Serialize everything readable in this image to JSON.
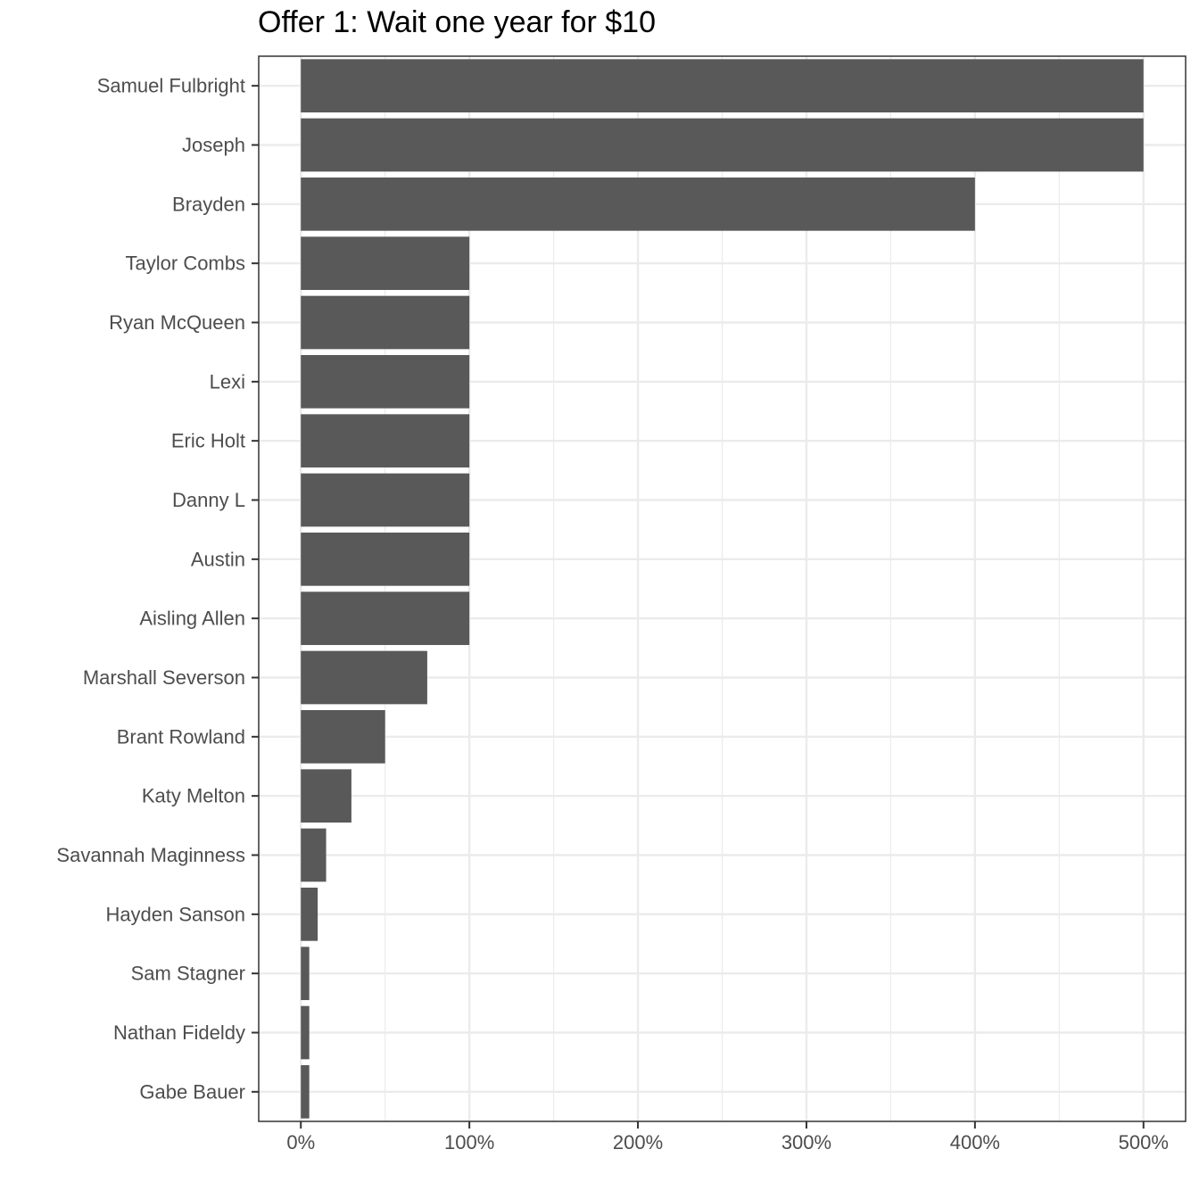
{
  "chart_data": {
    "type": "bar",
    "orientation": "horizontal",
    "title": "Offer 1: Wait one year for $10",
    "xlabel": "",
    "ylabel": "",
    "categories": [
      "Samuel Fulbright",
      "Joseph",
      "Brayden",
      "Taylor Combs",
      "Ryan McQueen",
      "Lexi",
      "Eric Holt",
      "Danny L",
      "Austin",
      "Aisling Allen",
      "Marshall Severson",
      "Brant Rowland",
      "Katy Melton",
      "Savannah Maginness",
      "Hayden Sanson",
      "Sam Stagner",
      "Nathan Fideldy",
      "Gabe Bauer"
    ],
    "values": [
      500,
      500,
      400,
      100,
      100,
      100,
      100,
      100,
      100,
      100,
      75,
      50,
      30,
      15,
      10,
      5,
      5,
      5
    ],
    "value_unit": "%",
    "xlim": [
      -25,
      525
    ],
    "x_ticks": [
      0,
      100,
      200,
      300,
      400,
      500
    ],
    "x_tick_labels": [
      "0%",
      "100%",
      "200%",
      "300%",
      "400%",
      "500%"
    ],
    "grid": true,
    "legend": "none",
    "colors": {
      "bar": "#595959",
      "grid": "#ebebeb",
      "panel_border": "#333333",
      "tick_text": "#4d4d4d",
      "background": "#ffffff"
    }
  }
}
